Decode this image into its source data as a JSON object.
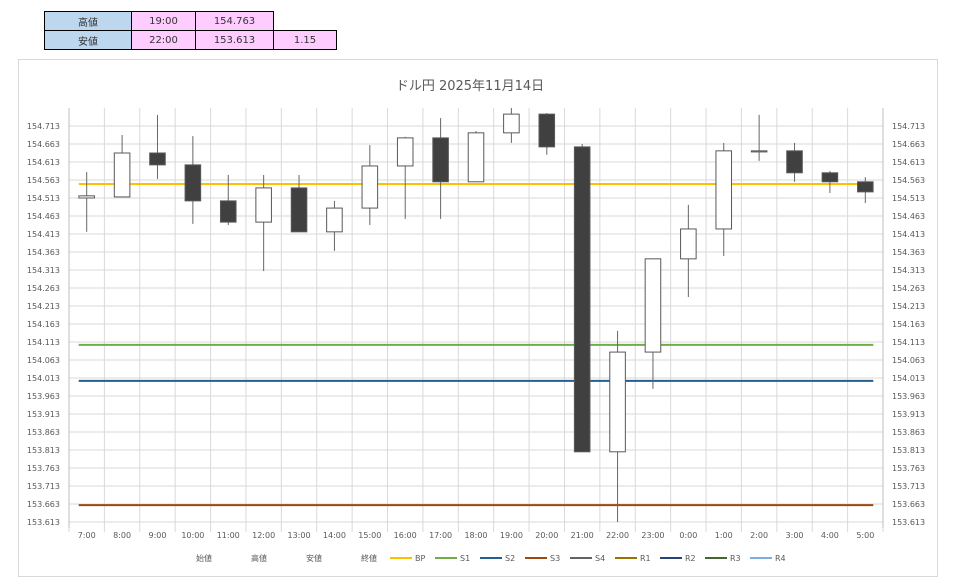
{
  "summary_table": {
    "rows": [
      {
        "label": "高値",
        "time": "19:00",
        "price": "154.763",
        "extra": ""
      },
      {
        "label": "安値",
        "time": "22:00",
        "price": "153.613",
        "extra": "1.15"
      }
    ]
  },
  "chart_data": {
    "type": "candlestick",
    "title": "ドル円  2025年11月14日",
    "categories": [
      "7:00",
      "8:00",
      "9:00",
      "10:00",
      "11:00",
      "12:00",
      "13:00",
      "14:00",
      "15:00",
      "16:00",
      "17:00",
      "18:00",
      "19:00",
      "20:00",
      "21:00",
      "22:00",
      "23:00",
      "0:00",
      "1:00",
      "2:00",
      "3:00",
      "4:00",
      "5:00"
    ],
    "open": [
      154.513,
      154.516,
      154.638,
      154.605,
      154.505,
      154.446,
      154.541,
      154.419,
      154.485,
      154.602,
      154.68,
      154.558,
      154.694,
      154.746,
      154.655,
      153.808,
      154.085,
      154.344,
      154.427,
      154.641,
      154.644,
      154.583,
      154.558
    ],
    "high": [
      154.585,
      154.688,
      154.744,
      154.685,
      154.577,
      154.577,
      154.577,
      154.505,
      154.66,
      154.683,
      154.735,
      154.699,
      154.763,
      154.749,
      154.663,
      154.144,
      154.344,
      154.494,
      154.666,
      154.744,
      154.666,
      154.588,
      154.571
    ],
    "low": [
      154.419,
      154.516,
      154.566,
      154.441,
      154.438,
      154.31,
      154.419,
      154.366,
      154.438,
      154.455,
      154.455,
      154.558,
      154.666,
      154.633,
      153.808,
      153.613,
      153.983,
      154.238,
      154.352,
      154.616,
      154.558,
      154.527,
      154.499
    ],
    "close": [
      154.519,
      154.638,
      154.605,
      154.505,
      154.446,
      154.541,
      154.419,
      154.485,
      154.602,
      154.68,
      154.558,
      154.694,
      154.746,
      154.655,
      153.808,
      154.085,
      154.344,
      154.427,
      154.644,
      154.644,
      154.583,
      154.558,
      154.53
    ],
    "ylim": [
      153.613,
      154.713
    ],
    "ytick_step": 0.05,
    "yticks": [
      "154.713",
      "154.663",
      "154.613",
      "154.563",
      "154.513",
      "154.463",
      "154.413",
      "154.363",
      "154.313",
      "154.263",
      "154.213",
      "154.163",
      "154.113",
      "154.063",
      "154.013",
      "153.963",
      "153.913",
      "153.863",
      "153.813",
      "153.763",
      "153.713",
      "153.663",
      "153.613"
    ],
    "levels": [
      {
        "name": "BP",
        "value": 154.552,
        "color": "#FFC000"
      },
      {
        "name": "S1",
        "value": 154.105,
        "color": "#70AD47"
      },
      {
        "name": "S2",
        "value": 154.005,
        "color": "#255E91"
      },
      {
        "name": "S3",
        "value": 153.66,
        "color": "#9E480E"
      },
      {
        "name": "S4",
        "value": null,
        "color": "#636363"
      },
      {
        "name": "R1",
        "value": null,
        "color": "#997300"
      },
      {
        "name": "R2",
        "value": null,
        "color": "#264478"
      },
      {
        "name": "R3",
        "value": null,
        "color": "#43682B"
      },
      {
        "name": "R4",
        "value": null,
        "color": "#7CAFDD"
      }
    ],
    "legend_plain": [
      "始値",
      "高値",
      "安値",
      "終値"
    ],
    "legend_position": "bottom",
    "grid": true
  }
}
